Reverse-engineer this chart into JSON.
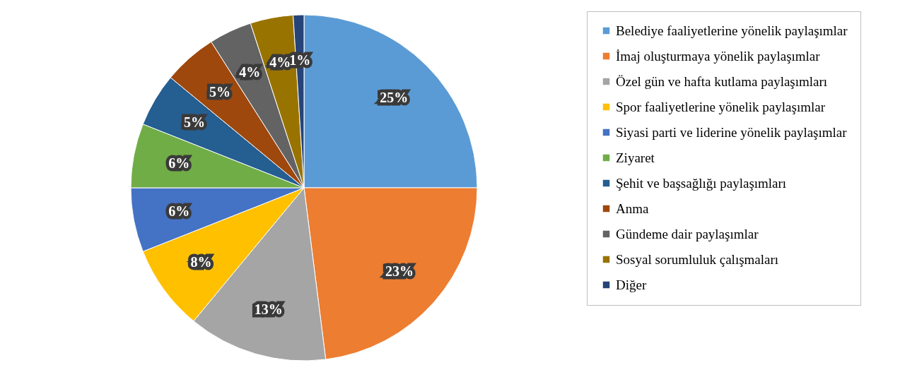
{
  "chart_data": {
    "type": "pie",
    "categories": [
      "Belediye faaliyetlerine yönelik paylaşımlar",
      "İmaj oluşturmaya yönelik paylaşımlar",
      "Özel gün ve hafta kutlama paylaşımları",
      "Spor faaliyetlerine yönelik paylaşımlar",
      "Siyasi parti ve liderine yönelik paylaşımlar",
      "Ziyaret",
      "Şehit ve başsağlığı paylaşımları",
      "Anma",
      "Gündeme dair paylaşımlar",
      "Sosyal sorumluluk çalışmaları",
      "Diğer"
    ],
    "values": [
      25,
      23,
      13,
      8,
      6,
      6,
      5,
      5,
      4,
      4,
      1
    ],
    "value_labels": [
      "25%",
      "23%",
      "13%",
      "8%",
      "6%",
      "6%",
      "5%",
      "5%",
      "4%",
      "4%",
      "1%"
    ],
    "colors": [
      "#5b9bd5",
      "#ed7d31",
      "#a5a5a5",
      "#ffc000",
      "#4472c4",
      "#70ad47",
      "#255e91",
      "#9e480e",
      "#636363",
      "#997300",
      "#264478"
    ],
    "legend": "right"
  }
}
